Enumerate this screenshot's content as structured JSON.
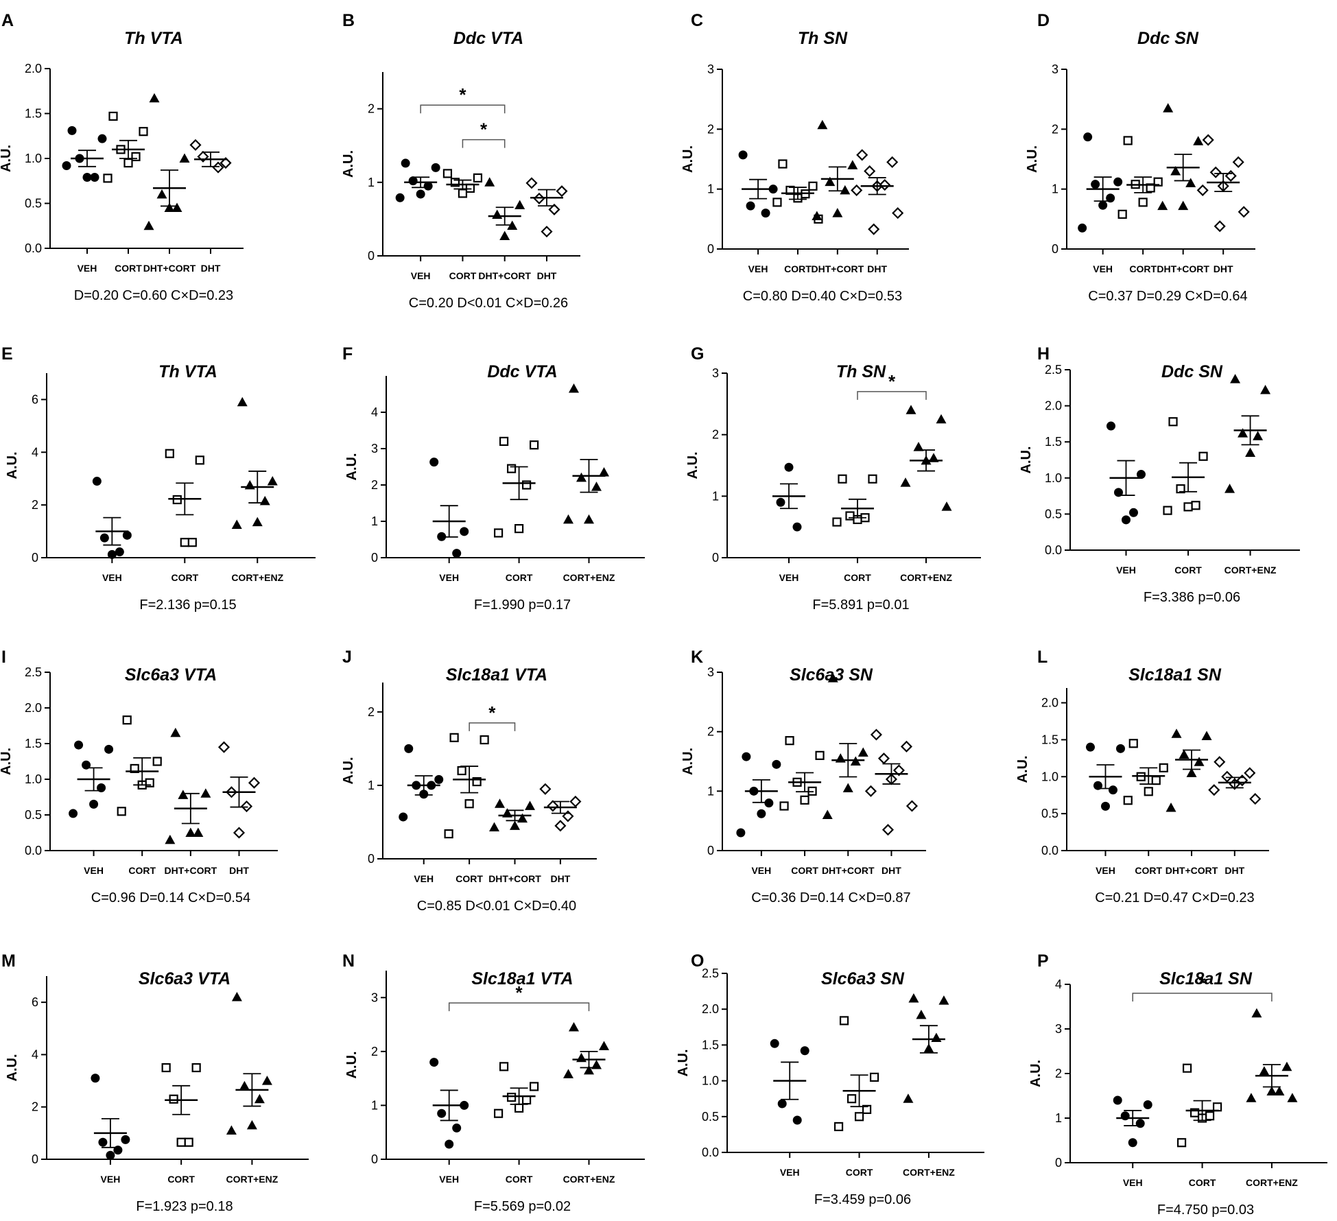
{
  "figure": {
    "background": "#ffffff",
    "ink_color": "#000000"
  },
  "chart_data": [
    {
      "letter": "A",
      "title": "Th VTA",
      "type": "scatter",
      "ylabel": "A.U.",
      "ylim": [
        0,
        2
      ],
      "yticks": [
        0,
        0.5,
        1,
        1.5,
        2
      ],
      "tick_labels": [
        "0.0",
        "0.5",
        "1.0",
        "1.5",
        "2.0"
      ],
      "categories": [
        "VEH",
        "CORT",
        "DHT+CORT",
        "DHT"
      ],
      "markers": [
        "circle-filled",
        "square-open",
        "triangle-filled",
        "diamond-open"
      ],
      "points": [
        [
          1.31,
          1.22,
          1.0,
          0.79,
          0.79,
          0.92
        ],
        [
          1.47,
          1.3,
          1.1,
          1.02,
          0.95,
          0.78
        ],
        [
          1.67,
          1.0,
          0.6,
          0.45,
          0.45,
          0.25
        ],
        [
          1.15,
          0.95,
          1.02,
          0.9
        ]
      ],
      "means": [
        1.0,
        1.1,
        0.67,
        0.99
      ],
      "sems": [
        0.09,
        0.1,
        0.2,
        0.08
      ],
      "stats": "D=0.20 C=0.60 C×D=0.23",
      "sig": []
    },
    {
      "letter": "B",
      "title": "Ddc VTA",
      "type": "scatter",
      "ylabel": "A.U.",
      "ylim": [
        0,
        2.5
      ],
      "yticks": [
        0,
        1,
        2
      ],
      "tick_labels": [
        "0",
        "1",
        "2"
      ],
      "categories": [
        "VEH",
        "CORT",
        "DHT+CORT",
        "DHT"
      ],
      "markers": [
        "circle-filled",
        "square-open",
        "triangle-filled",
        "diamond-open"
      ],
      "points": [
        [
          1.26,
          1.2,
          1.02,
          0.95,
          0.84,
          0.79
        ],
        [
          1.12,
          1.06,
          1.0,
          0.92,
          0.85
        ],
        [
          1.0,
          0.69,
          0.56,
          0.41,
          0.27
        ],
        [
          0.99,
          0.88,
          0.78,
          0.63,
          0.33
        ]
      ],
      "means": [
        1.0,
        0.97,
        0.54,
        0.79
      ],
      "sems": [
        0.07,
        0.06,
        0.12,
        0.11
      ],
      "stats": "C=0.20 D<0.01 C×D=0.26",
      "sig": [
        {
          "from": 0,
          "to": 2,
          "label": "*",
          "y": 2.05
        },
        {
          "from": 1,
          "to": 2,
          "label": "*",
          "y": 1.58
        }
      ]
    },
    {
      "letter": "C",
      "title": "Th SN",
      "type": "scatter",
      "ylabel": "A.U.",
      "ylim": [
        0,
        3
      ],
      "yticks": [
        0,
        1,
        2,
        3
      ],
      "tick_labels": [
        "0",
        "1",
        "2",
        "3"
      ],
      "categories": [
        "VEH",
        "CORT",
        "DHT+CORT",
        "DHT"
      ],
      "markers": [
        "circle-filled",
        "square-open",
        "triangle-filled",
        "diamond-open"
      ],
      "points": [
        [
          1.57,
          1.0,
          0.72,
          0.6
        ],
        [
          1.42,
          1.05,
          0.98,
          0.92,
          0.85,
          0.78,
          0.5
        ],
        [
          2.07,
          1.4,
          1.12,
          0.98,
          0.6,
          0.55
        ],
        [
          1.57,
          1.45,
          1.3,
          1.07,
          1.05,
          0.98,
          0.6,
          0.33
        ]
      ],
      "means": [
        1.0,
        0.93,
        1.17,
        1.05
      ],
      "sems": [
        0.16,
        0.1,
        0.2,
        0.14
      ],
      "stats": "C=0.80 D=0.40 C×D=0.53",
      "sig": []
    },
    {
      "letter": "D",
      "title": "Ddc SN",
      "type": "scatter",
      "ylabel": "A.U.",
      "ylim": [
        0,
        3
      ],
      "yticks": [
        0,
        1,
        2,
        3
      ],
      "tick_labels": [
        "0",
        "1",
        "2",
        "3"
      ],
      "categories": [
        "VEH",
        "CORT",
        "DHT+CORT",
        "DHT"
      ],
      "markers": [
        "circle-filled",
        "square-open",
        "triangle-filled",
        "diamond-open"
      ],
      "points": [
        [
          1.87,
          1.12,
          1.08,
          0.85,
          0.73,
          0.35
        ],
        [
          1.81,
          1.12,
          1.08,
          1.02,
          0.78,
          0.58
        ],
        [
          2.35,
          1.8,
          1.3,
          1.1,
          0.72,
          0.72
        ],
        [
          1.82,
          1.45,
          1.28,
          1.22,
          1.05,
          0.98,
          0.62,
          0.38
        ]
      ],
      "means": [
        1.0,
        1.07,
        1.36,
        1.11
      ],
      "sems": [
        0.2,
        0.13,
        0.22,
        0.15
      ],
      "stats": "C=0.37 D=0.29 C×D=0.64",
      "sig": []
    },
    {
      "letter": "E",
      "title": "Th VTA",
      "type": "scatter",
      "ylabel": "A.U.",
      "ylim": [
        0,
        7
      ],
      "yticks": [
        0,
        2,
        4,
        6
      ],
      "tick_labels": [
        "0",
        "2",
        "4",
        "6"
      ],
      "categories": [
        "VEH",
        "CORT",
        "CORT+ENZ"
      ],
      "markers": [
        "circle-filled",
        "square-open",
        "triangle-filled"
      ],
      "points": [
        [
          2.9,
          0.85,
          0.75,
          0.22,
          0.12
        ],
        [
          3.95,
          3.7,
          2.2,
          0.58,
          0.58
        ],
        [
          5.9,
          2.9,
          2.75,
          2.15,
          1.35,
          1.25
        ]
      ],
      "means": [
        1.0,
        2.23,
        2.68
      ],
      "sems": [
        0.52,
        0.6,
        0.6
      ],
      "stats": "F=2.136 p=0.15",
      "sig": []
    },
    {
      "letter": "F",
      "title": "Ddc VTA",
      "type": "scatter",
      "ylabel": "A.U.",
      "ylim": [
        0,
        5
      ],
      "yticks": [
        0,
        1,
        2,
        3,
        4
      ],
      "tick_labels": [
        "0",
        "1",
        "2",
        "3",
        "4"
      ],
      "categories": [
        "VEH",
        "CORT",
        "CORT+ENZ"
      ],
      "markers": [
        "circle-filled",
        "square-open",
        "triangle-filled"
      ],
      "points": [
        [
          2.63,
          0.72,
          0.58,
          0.12
        ],
        [
          3.2,
          3.1,
          2.45,
          2.0,
          0.8,
          0.68
        ],
        [
          4.65,
          2.35,
          2.2,
          1.95,
          1.05,
          1.05
        ]
      ],
      "means": [
        1.0,
        2.05,
        2.25
      ],
      "sems": [
        0.43,
        0.45,
        0.45
      ],
      "stats": "F=1.990 p=0.17",
      "sig": []
    },
    {
      "letter": "G",
      "title": "Th SN",
      "type": "scatter",
      "ylabel": "A.U.",
      "ylim": [
        0,
        3
      ],
      "yticks": [
        0,
        1,
        2,
        3
      ],
      "tick_labels": [
        "0",
        "1",
        "2",
        "3"
      ],
      "categories": [
        "VEH",
        "CORT",
        "CORT+ENZ"
      ],
      "markers": [
        "circle-filled",
        "square-open",
        "triangle-filled"
      ],
      "points": [
        [
          1.47,
          0.9,
          0.5
        ],
        [
          1.28,
          1.28,
          0.68,
          0.65,
          0.62,
          0.58
        ],
        [
          2.4,
          2.25,
          1.8,
          1.62,
          1.58,
          1.22,
          0.83
        ]
      ],
      "means": [
        1.0,
        0.8,
        1.58
      ],
      "sems": [
        0.2,
        0.15,
        0.17
      ],
      "stats": "F=5.891 p=0.01",
      "sig": [
        {
          "from": 1,
          "to": 2,
          "label": "*",
          "y": 2.7
        }
      ]
    },
    {
      "letter": "H",
      "title": "Ddc SN",
      "type": "scatter",
      "ylabel": "A.U.",
      "ylim": [
        0,
        2.5
      ],
      "yticks": [
        0,
        0.5,
        1,
        1.5,
        2,
        2.5
      ],
      "tick_labels": [
        "0.0",
        "0.5",
        "1.0",
        "1.5",
        "2.0",
        "2.5"
      ],
      "categories": [
        "VEH",
        "CORT",
        "CORT+ENZ"
      ],
      "markers": [
        "circle-filled",
        "square-open",
        "triangle-filled"
      ],
      "points": [
        [
          1.72,
          1.05,
          0.8,
          0.52,
          0.42
        ],
        [
          1.78,
          1.3,
          0.85,
          0.62,
          0.6,
          0.55
        ],
        [
          2.37,
          2.22,
          1.62,
          1.58,
          1.35,
          0.85
        ]
      ],
      "means": [
        1.0,
        1.01,
        1.66
      ],
      "sems": [
        0.24,
        0.2,
        0.2
      ],
      "stats": "F=3.386 p=0.06",
      "sig": []
    },
    {
      "letter": "I",
      "title": "Slc6a3 VTA",
      "type": "scatter",
      "ylabel": "A.U.",
      "ylim": [
        0,
        2.5
      ],
      "yticks": [
        0,
        0.5,
        1,
        1.5,
        2,
        2.5
      ],
      "tick_labels": [
        "0.0",
        "0.5",
        "1.0",
        "1.5",
        "2.0",
        "2.5"
      ],
      "categories": [
        "VEH",
        "CORT",
        "DHT+CORT",
        "DHT"
      ],
      "markers": [
        "circle-filled",
        "square-open",
        "triangle-filled",
        "diamond-open"
      ],
      "points": [
        [
          1.48,
          1.42,
          1.2,
          0.88,
          0.65,
          0.52
        ],
        [
          1.83,
          1.25,
          1.15,
          0.95,
          0.92,
          0.55
        ],
        [
          1.65,
          0.8,
          0.78,
          0.25,
          0.25,
          0.15
        ],
        [
          1.45,
          0.95,
          0.82,
          0.62,
          0.25
        ]
      ],
      "means": [
        1.0,
        1.11,
        0.59,
        0.82
      ],
      "sems": [
        0.16,
        0.19,
        0.21,
        0.21
      ],
      "stats": "C=0.96 D=0.14 C×D=0.54",
      "sig": []
    },
    {
      "letter": "J",
      "title": "Slc18a1 VTA",
      "type": "scatter",
      "ylabel": "A.U.",
      "ylim": [
        0,
        2.4
      ],
      "yticks": [
        0,
        1,
        2
      ],
      "tick_labels": [
        "0",
        "1",
        "2"
      ],
      "categories": [
        "VEH",
        "CORT",
        "DHT+CORT",
        "DHT"
      ],
      "markers": [
        "circle-filled",
        "square-open",
        "triangle-filled",
        "diamond-open"
      ],
      "points": [
        [
          1.5,
          1.08,
          1.0,
          1.0,
          0.88,
          0.57
        ],
        [
          1.65,
          1.62,
          1.2,
          1.05,
          0.75,
          0.34
        ],
        [
          0.75,
          0.72,
          0.62,
          0.55,
          0.45,
          0.43
        ],
        [
          0.95,
          0.78,
          0.72,
          0.58,
          0.45
        ]
      ],
      "means": [
        1.0,
        1.08,
        0.59,
        0.7
      ],
      "sems": [
        0.13,
        0.18,
        0.07,
        0.08
      ],
      "stats": "C=0.85 D<0.01 C×D=0.40",
      "sig": [
        {
          "from": 1,
          "to": 2,
          "label": "*",
          "y": 1.85
        }
      ]
    },
    {
      "letter": "K",
      "title": "Slc6a3 SN",
      "type": "scatter",
      "ylabel": "A.U.",
      "ylim": [
        0,
        3
      ],
      "yticks": [
        0,
        1,
        2,
        3
      ],
      "tick_labels": [
        "0",
        "1",
        "2",
        "3"
      ],
      "categories": [
        "VEH",
        "CORT",
        "DHT+CORT",
        "DHT"
      ],
      "markers": [
        "circle-filled",
        "square-open",
        "triangle-filled",
        "diamond-open"
      ],
      "points": [
        [
          1.58,
          1.45,
          1.0,
          0.8,
          0.62,
          0.3
        ],
        [
          1.85,
          1.6,
          1.15,
          1.0,
          0.85,
          0.75
        ],
        [
          2.9,
          1.65,
          1.55,
          1.5,
          1.05,
          0.6
        ],
        [
          1.95,
          1.75,
          1.55,
          1.35,
          1.2,
          1.0,
          0.75,
          0.35
        ]
      ],
      "means": [
        1.0,
        1.15,
        1.52,
        1.29
      ],
      "sems": [
        0.19,
        0.16,
        0.28,
        0.17
      ],
      "stats": "C=0.36 D=0.14 C×D=0.87",
      "sig": []
    },
    {
      "letter": "L",
      "title": "Slc18a1 SN",
      "type": "scatter",
      "ylabel": "A.U.",
      "ylim": [
        0,
        2.2
      ],
      "yticks": [
        0,
        0.5,
        1,
        1.5,
        2
      ],
      "tick_labels": [
        "0.0",
        "0.5",
        "1.0",
        "1.5",
        "2.0"
      ],
      "categories": [
        "VEH",
        "CORT",
        "DHT+CORT",
        "DHT"
      ],
      "markers": [
        "circle-filled",
        "square-open",
        "triangle-filled",
        "diamond-open"
      ],
      "points": [
        [
          1.4,
          1.38,
          0.88,
          0.82,
          0.6
        ],
        [
          1.45,
          1.12,
          1.0,
          0.95,
          0.8,
          0.68
        ],
        [
          1.58,
          1.55,
          1.3,
          1.2,
          1.05,
          0.58
        ],
        [
          1.2,
          1.05,
          1.0,
          0.95,
          0.9,
          0.82,
          0.7
        ]
      ],
      "means": [
        1.0,
        1.01,
        1.23,
        0.92
      ],
      "sems": [
        0.16,
        0.11,
        0.13,
        0.07
      ],
      "stats": "C=0.21 D=0.47 C×D=0.23",
      "sig": []
    },
    {
      "letter": "M",
      "title": "Slc6a3 VTA",
      "type": "scatter",
      "ylabel": "A.U.",
      "ylim": [
        0,
        7
      ],
      "yticks": [
        0,
        2,
        4,
        6
      ],
      "tick_labels": [
        "0",
        "2",
        "4",
        "6"
      ],
      "categories": [
        "VEH",
        "CORT",
        "CORT+ENZ"
      ],
      "markers": [
        "circle-filled",
        "square-open",
        "triangle-filled"
      ],
      "points": [
        [
          3.1,
          0.75,
          0.65,
          0.35,
          0.15
        ],
        [
          3.5,
          3.5,
          2.3,
          0.65,
          0.65
        ],
        [
          6.2,
          3.0,
          2.8,
          2.3,
          1.3,
          1.1
        ]
      ],
      "means": [
        1.0,
        2.26,
        2.65
      ],
      "sems": [
        0.55,
        0.55,
        0.62
      ],
      "stats": "F=1.923 p=0.18",
      "sig": []
    },
    {
      "letter": "N",
      "title": "Slc18a1 VTA",
      "type": "scatter",
      "ylabel": "A.U.",
      "ylim": [
        0,
        3.5
      ],
      "yticks": [
        0,
        1,
        2,
        3
      ],
      "tick_labels": [
        "0",
        "1",
        "2",
        "3"
      ],
      "categories": [
        "VEH",
        "CORT",
        "CORT+ENZ"
      ],
      "markers": [
        "circle-filled",
        "square-open",
        "triangle-filled"
      ],
      "points": [
        [
          1.8,
          1.0,
          0.85,
          0.58,
          0.28
        ],
        [
          1.72,
          1.35,
          1.15,
          1.1,
          0.95,
          0.85
        ],
        [
          2.45,
          2.1,
          1.88,
          1.75,
          1.65,
          1.58
        ]
      ],
      "means": [
        1.0,
        1.17,
        1.85
      ],
      "sems": [
        0.28,
        0.15,
        0.15
      ],
      "stats": "F=5.569 p=0.02",
      "sig": [
        {
          "from": 0,
          "to": 2,
          "label": "*",
          "y": 2.9
        }
      ]
    },
    {
      "letter": "O",
      "title": "Slc6a3 SN",
      "type": "scatter",
      "ylabel": "A.U.",
      "ylim": [
        0,
        2.5
      ],
      "yticks": [
        0,
        0.5,
        1,
        1.5,
        2,
        2.5
      ],
      "tick_labels": [
        "0.0",
        "0.5",
        "1.0",
        "1.5",
        "2.0",
        "2.5"
      ],
      "categories": [
        "VEH",
        "CORT",
        "CORT+ENZ"
      ],
      "markers": [
        "circle-filled",
        "square-open",
        "triangle-filled"
      ],
      "points": [
        [
          1.52,
          1.42,
          0.68,
          0.45
        ],
        [
          1.84,
          1.05,
          0.75,
          0.6,
          0.5,
          0.36
        ],
        [
          2.15,
          2.12,
          1.92,
          1.6,
          1.45,
          0.75
        ]
      ],
      "means": [
        1.0,
        0.86,
        1.58
      ],
      "sems": [
        0.26,
        0.22,
        0.19
      ],
      "stats": "F=3.459 p=0.06",
      "sig": []
    },
    {
      "letter": "P",
      "title": "Slc18a1 SN",
      "type": "scatter",
      "ylabel": "A.U.",
      "ylim": [
        0,
        4
      ],
      "yticks": [
        0,
        1,
        2,
        3,
        4
      ],
      "tick_labels": [
        "0",
        "1",
        "2",
        "3",
        "4"
      ],
      "categories": [
        "VEH",
        "CORT",
        "CORT+ENZ"
      ],
      "markers": [
        "circle-filled",
        "square-open",
        "triangle-filled"
      ],
      "points": [
        [
          1.4,
          1.3,
          1.05,
          0.88,
          0.45
        ],
        [
          2.12,
          1.25,
          1.12,
          1.05,
          1.0,
          0.45
        ],
        [
          3.35,
          2.15,
          2.05,
          1.6,
          1.6,
          1.45,
          1.45
        ]
      ],
      "means": [
        1.0,
        1.17,
        1.95
      ],
      "sems": [
        0.17,
        0.22,
        0.25
      ],
      "stats": "F=4.750 p=0.03",
      "sig": [
        {
          "from": 0,
          "to": 2,
          "label": "*",
          "y": 3.8
        }
      ]
    }
  ]
}
